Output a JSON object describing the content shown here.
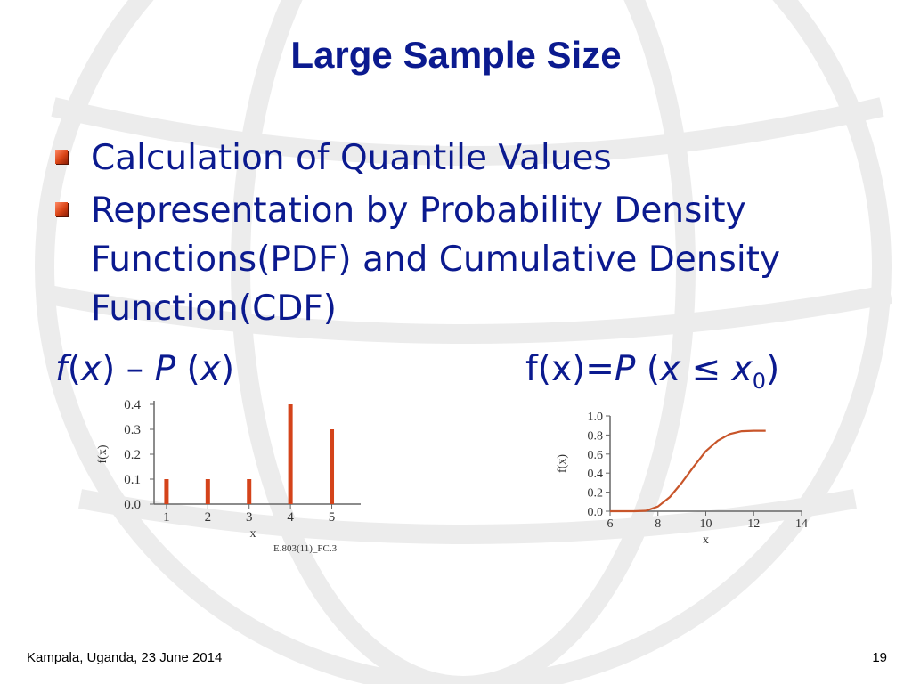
{
  "slide": {
    "title": "Large Sample Size",
    "bullets": [
      "Calculation of Quantile Values",
      "Representation by Probability Density Functions(PDF) and Cumulative Density Function(CDF)"
    ],
    "formula_left": {
      "f": "f",
      "x1": "x",
      "dash": " – ",
      "P": "P",
      "x2": "x"
    },
    "formula_right": {
      "prefix": "f(x)=",
      "P": "P",
      "open": " (",
      "x": "x",
      "le": " ≤ ",
      "x0": "x",
      "sub": "0",
      "close": ")"
    },
    "footer_left": "Kampala, Uganda, 23 June 2014",
    "page_number": "19",
    "bar_color": "#d4431a",
    "line_color": "#c8552a",
    "text_color": "#0b1a8f"
  },
  "chart_data": [
    {
      "type": "bar",
      "ylabel": "f(x)",
      "xlabel": "x",
      "caption": "E.803(11)_FC.3",
      "x": [
        1,
        2,
        3,
        4,
        5
      ],
      "values": [
        0.1,
        0.1,
        0.1,
        0.4,
        0.3
      ],
      "xlim": [
        0.7,
        5.7
      ],
      "ylim": [
        0,
        0.4
      ],
      "xticks": [
        "1",
        "2",
        "3",
        "4",
        "5"
      ],
      "yticks": [
        "0.0",
        "0.1",
        "0.2",
        "0.3",
        "0.4"
      ]
    },
    {
      "type": "line",
      "ylabel": "f(x)",
      "xlabel": "x",
      "xlim": [
        6,
        14
      ],
      "ylim": [
        0,
        1.0
      ],
      "xticks": [
        "6",
        "8",
        "10",
        "12",
        "14"
      ],
      "yticks": [
        "0.0",
        "0.2",
        "0.4",
        "0.6",
        "0.8",
        "1.0"
      ],
      "x": [
        6,
        7,
        7.5,
        8,
        8.5,
        9,
        9.5,
        10,
        10.5,
        11,
        11.5,
        12,
        12.5
      ],
      "y": [
        0,
        0,
        0.005,
        0.05,
        0.15,
        0.3,
        0.47,
        0.63,
        0.74,
        0.81,
        0.84,
        0.845,
        0.845
      ]
    }
  ]
}
